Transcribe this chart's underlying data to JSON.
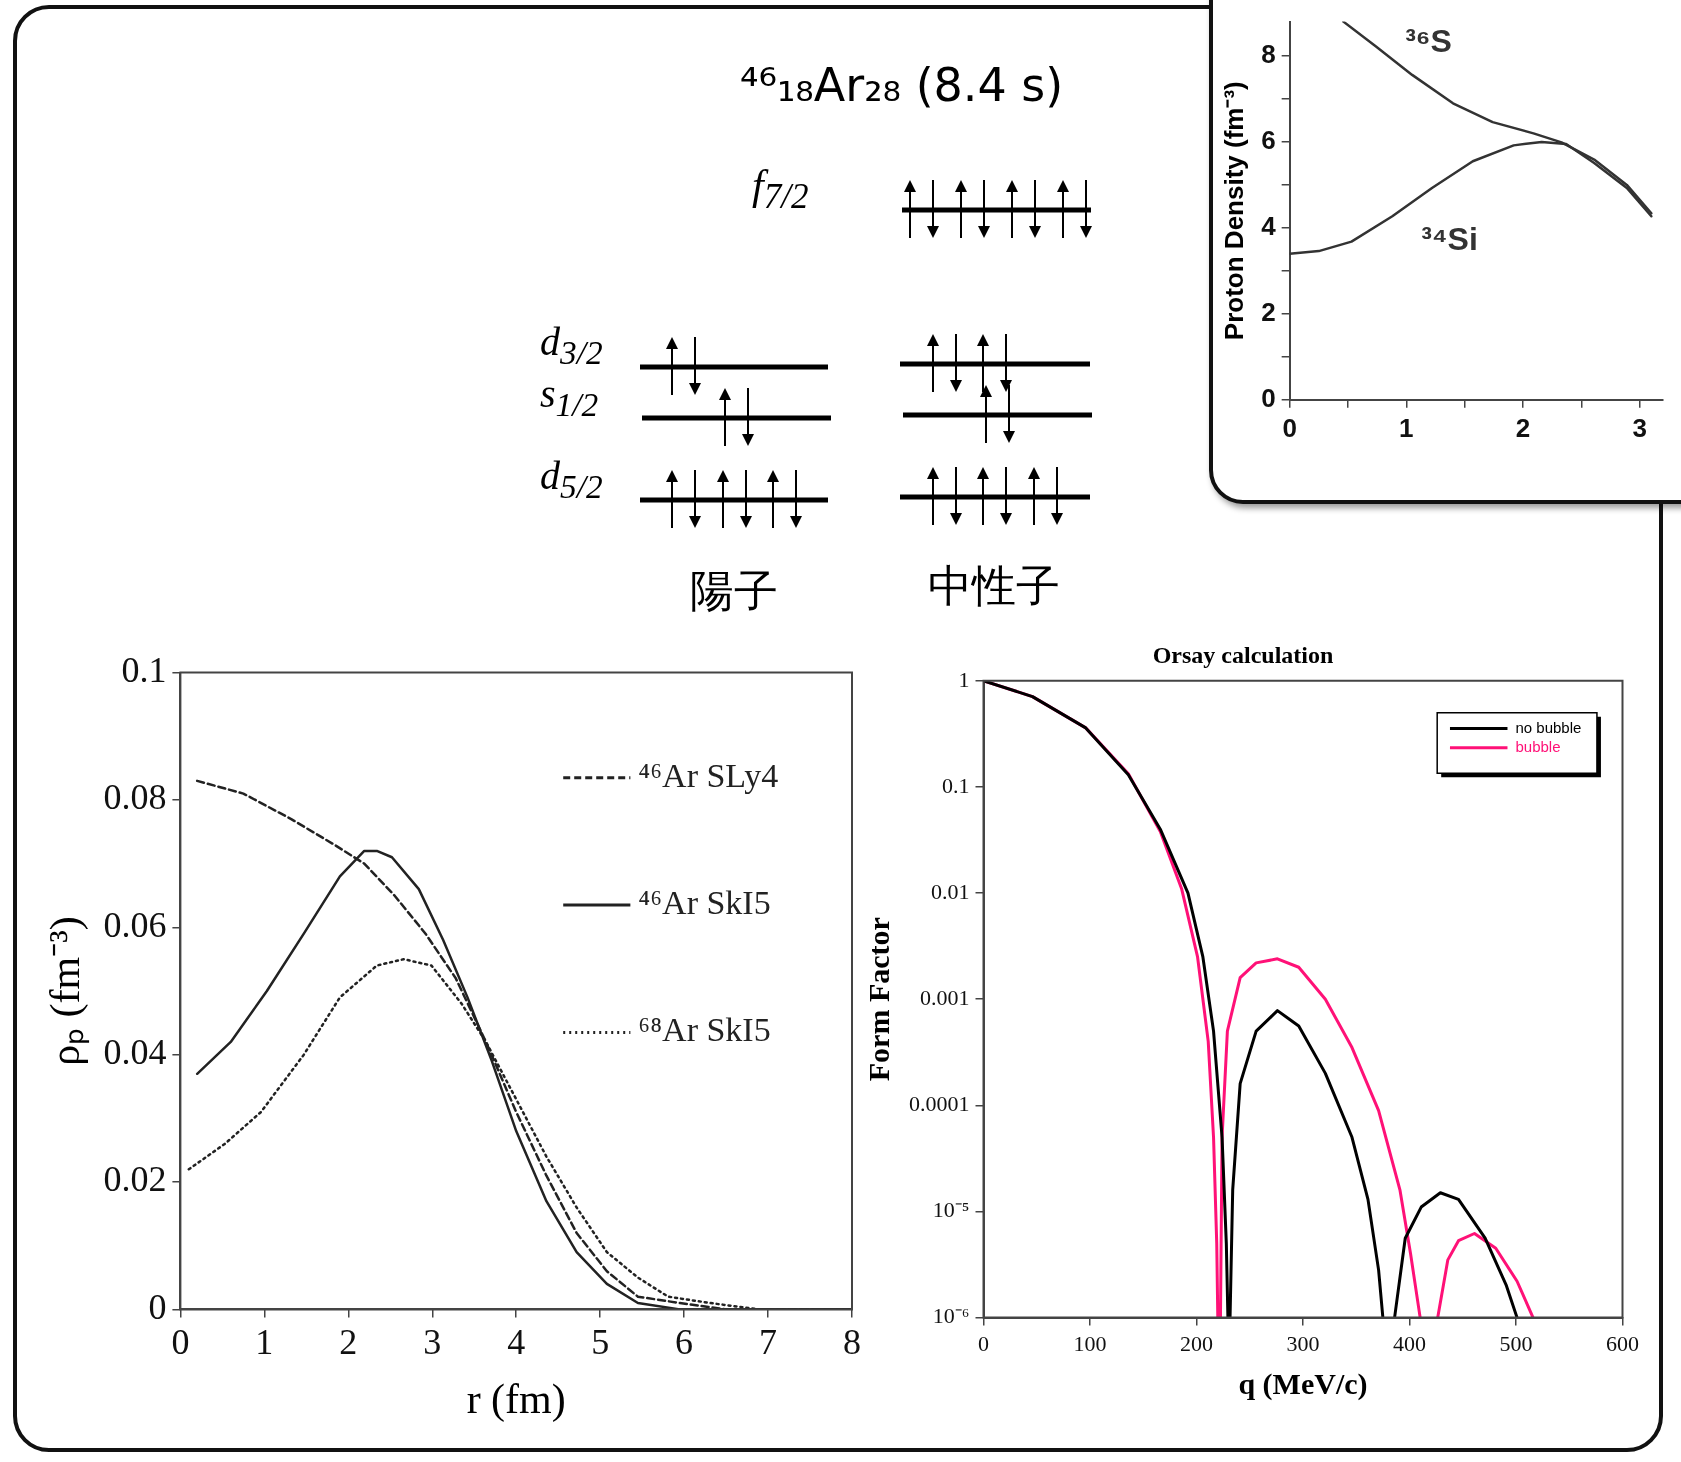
{
  "chart_data": [
    {
      "type": "other",
      "title": "⁴⁶₁₈Ar₂₈ (8.4 s)",
      "annotations": [
        "f$_{7/2}$",
        "d$_{3/2}$",
        "s$_{1/2}$",
        "d$_{5/2}$",
        "陽子",
        "中性子"
      ]
    },
    {
      "type": "line",
      "ylabel": "Proton Density (fm⁻³)",
      "xlim": [
        0,
        3.2
      ],
      "ylim": [
        0,
        8.8
      ],
      "xticks": [
        0,
        {
          "value": 0.5,
          "label": null
        },
        1,
        {
          "value": 1.5,
          "label": null
        },
        2,
        {
          "value": 2.5,
          "label": null
        },
        3
      ],
      "yticks": [
        0,
        {
          "value": 1,
          "label": null
        },
        2,
        {
          "value": 3,
          "label": null
        },
        4,
        {
          "value": 5,
          "label": null
        },
        6,
        {
          "value": 7,
          "label": null
        },
        8
      ],
      "series": [
        {
          "name": "³⁶S",
          "color": "#333333",
          "x": [
            0.46,
            0.74,
            1.05,
            1.4,
            1.74,
            2.09,
            2.33,
            2.61,
            2.89,
            3.1
          ],
          "values": [
            8.8,
            8.22,
            7.56,
            6.9,
            6.46,
            6.2,
            5.99,
            5.59,
            5.0,
            4.34
          ]
        },
        {
          "name": "³⁴Si",
          "color": "#333333",
          "x": [
            0,
            0.25,
            0.53,
            0.88,
            1.22,
            1.57,
            1.92,
            2.16,
            2.37,
            2.61,
            2.89,
            3.1
          ],
          "values": [
            3.4,
            3.46,
            3.68,
            4.27,
            4.93,
            5.55,
            5.92,
            6.0,
            5.95,
            5.51,
            4.93,
            4.27
          ]
        }
      ]
    },
    {
      "type": "line",
      "xlabel": "r (fm)",
      "ylabel": "ρₚ (fm⁻³)",
      "xlim": [
        0,
        8
      ],
      "ylim": [
        0,
        0.1
      ],
      "xticks": [
        0,
        1,
        2,
        3,
        4,
        5,
        6,
        7,
        8
      ],
      "yticks": [
        0,
        0.02,
        0.04,
        0.06,
        0.08,
        0.1
      ],
      "legend": "right",
      "series": [
        {
          "name": "⁴⁶Ar SLy4",
          "color": "#222222",
          "line_style": "dashed",
          "x": [
            0.2,
            0.75,
            1.32,
            1.83,
            2.19,
            2.55,
            2.92,
            3.28,
            3.64,
            4.0,
            4.36,
            4.72,
            5.08,
            5.45,
            5.95,
            6.5,
            8
          ],
          "values": [
            0.083,
            0.081,
            0.077,
            0.073,
            0.07,
            0.065,
            0.059,
            0.052,
            0.042,
            0.031,
            0.021,
            0.012,
            0.006,
            0.002,
            0.001,
            0,
            0
          ]
        },
        {
          "name": "⁴⁶Ar SkI5",
          "color": "#222222",
          "line_style": "solid",
          "x": [
            0.2,
            0.6,
            1.03,
            1.47,
            1.9,
            2.19,
            2.34,
            2.52,
            2.84,
            3.13,
            3.42,
            3.71,
            4.0,
            4.36,
            4.72,
            5.08,
            5.45,
            5.95,
            6.5,
            8
          ],
          "values": [
            0.037,
            0.042,
            0.05,
            0.059,
            0.068,
            0.072,
            0.072,
            0.071,
            0.066,
            0.058,
            0.049,
            0.039,
            0.028,
            0.017,
            0.009,
            0.004,
            0.001,
            0.0,
            0,
            0
          ]
        },
        {
          "name": "⁶⁸Ar SkI5",
          "color": "#222222",
          "line_style": "dotted",
          "x": [
            0.1,
            0.53,
            0.96,
            1.47,
            1.9,
            2.34,
            2.66,
            2.99,
            3.35,
            3.64,
            4.0,
            4.36,
            4.72,
            5.08,
            5.45,
            5.81,
            6.31,
            6.9,
            8
          ],
          "values": [
            0.022,
            0.026,
            0.031,
            0.04,
            0.049,
            0.054,
            0.055,
            0.054,
            0.048,
            0.042,
            0.033,
            0.024,
            0.016,
            0.009,
            0.005,
            0.002,
            0.001,
            0,
            0
          ]
        }
      ]
    },
    {
      "type": "line",
      "title": "Orsay calculation",
      "xlabel": "q (MeV/c)",
      "ylabel": "Form Factor",
      "log": "y",
      "xlim": [
        0,
        600
      ],
      "ylim": [
        1e-06,
        1
      ],
      "xticks": [
        0,
        100,
        200,
        300,
        400,
        500,
        600
      ],
      "yticks": [
        1,
        0.1,
        0.01,
        0.001,
        0.0001,
        {
          "value": 1e-05,
          "label": "10⁻⁵"
        },
        {
          "value": 1e-06,
          "label": "10⁻⁶"
        }
      ],
      "legend": "top right",
      "series": [
        {
          "name": "no bubble",
          "color": "#000000",
          "x": [
            0,
            46,
            96,
            136,
            166,
            192,
            206,
            216,
            224,
            228,
            229.5,
            230.5,
            231.5,
            234,
            241,
            256,
            276,
            296,
            321,
            346,
            361,
            371,
            375,
            380,
            386,
            396,
            411,
            429,
            446,
            471,
            491,
            501
          ],
          "values": [
            1,
            0.71,
            0.36,
            0.13,
            0.04,
            0.01,
            0.0025,
            0.0005,
            5e-05,
            5e-06,
            1e-06,
            null,
            1e-06,
            1.6e-05,
            0.00016,
            0.0005,
            0.00078,
            0.00056,
            0.0002,
            5e-05,
            1.3e-05,
            2.8e-06,
            1e-06,
            null,
            1e-06,
            5.6e-06,
            1.1e-05,
            1.5e-05,
            1.3e-05,
            5.6e-06,
            2e-06,
            1e-06
          ]
        },
        {
          "name": "bubble",
          "color": "#ff1177",
          "x": [
            0,
            46,
            96,
            136,
            166,
            186,
            201,
            211,
            216,
            219,
            220,
            221,
            222.5,
            224,
            229,
            241,
            256,
            276,
            296,
            321,
            346,
            371,
            391,
            401,
            410,
            418,
            426.5,
            436,
            446,
            461,
            481,
            501,
            516
          ],
          "values": [
            1,
            0.71,
            0.36,
            0.133,
            0.038,
            0.011,
            0.0025,
            0.0004,
            5e-05,
            5e-06,
            1e-06,
            null,
            1e-06,
            5e-05,
            0.0005,
            0.0016,
            0.0022,
            0.0024,
            0.002,
            0.001,
            0.00035,
            8.9e-05,
            1.6e-05,
            4e-06,
            1e-06,
            null,
            1e-06,
            3.5e-06,
            5.3e-06,
            6.2e-06,
            4.5e-06,
            2.2e-06,
            1e-06
          ]
        }
      ]
    }
  ]
}
